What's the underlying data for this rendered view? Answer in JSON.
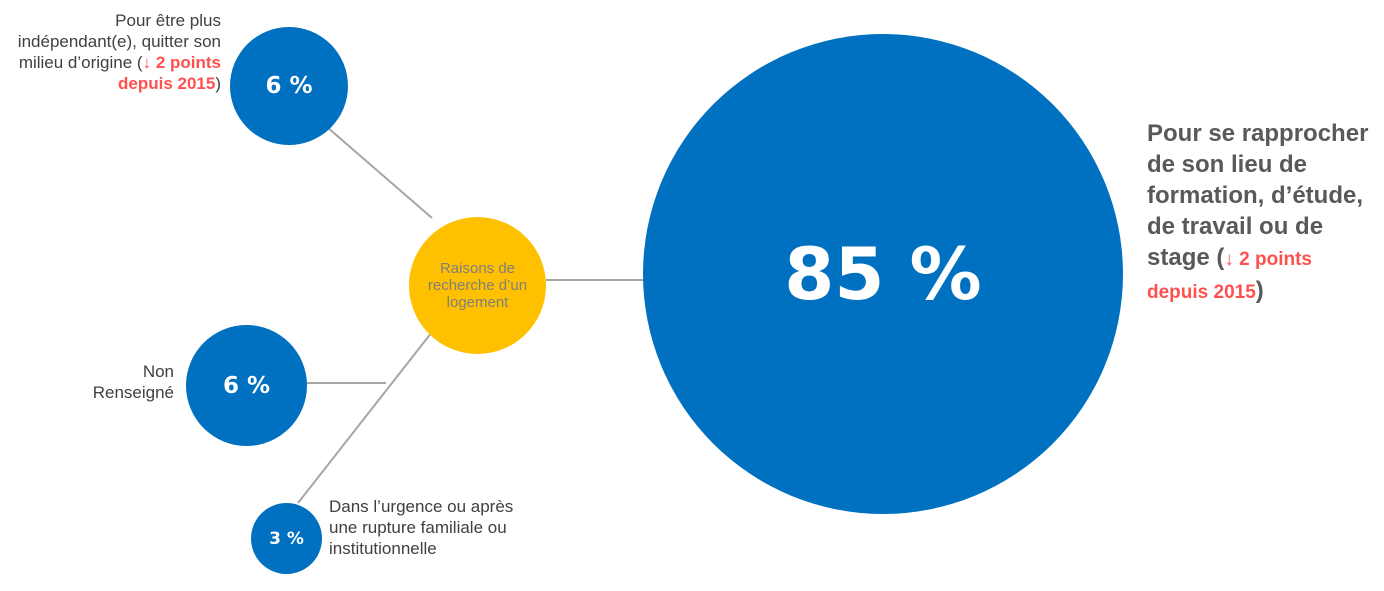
{
  "center": {
    "label": "Raisons de recherche d’un logement",
    "color": "#ffc000"
  },
  "accent": {
    "bubble_color": "#0070c0",
    "highlight_color": "#ff5050",
    "connector_color": "#a6a6a6"
  },
  "items": [
    {
      "value": "85 %",
      "label_main": "Pour se rapprocher de son lieu de formation, d’étude, de travail ou de stage (",
      "trend_arrow": "↓",
      "trend_text": " 2 points depuis 2015",
      "label_close": ")"
    },
    {
      "value": "6 %",
      "label_main": "Pour être plus indépendant(e), quitter son milieu d’origine (",
      "trend_arrow": "↓",
      "trend_text": " 2 points depuis 2015",
      "label_close": ")"
    },
    {
      "value": "6 %",
      "label_main": "Non Renseigné"
    },
    {
      "value": "3 %",
      "label_main": "Dans l’urgence ou après une rupture familiale ou institutionnelle"
    }
  ]
}
